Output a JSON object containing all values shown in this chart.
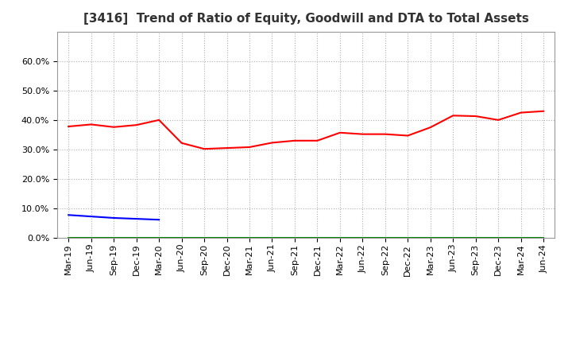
{
  "title": "[3416]  Trend of Ratio of Equity, Goodwill and DTA to Total Assets",
  "x_labels": [
    "Mar-19",
    "Jun-19",
    "Sep-19",
    "Dec-19",
    "Mar-20",
    "Jun-20",
    "Sep-20",
    "Dec-20",
    "Mar-21",
    "Jun-21",
    "Sep-21",
    "Dec-21",
    "Mar-22",
    "Jun-22",
    "Sep-22",
    "Dec-22",
    "Mar-23",
    "Jun-23",
    "Sep-23",
    "Dec-23",
    "Mar-24",
    "Jun-24"
  ],
  "equity": [
    0.378,
    0.385,
    0.376,
    0.383,
    0.4,
    0.322,
    0.302,
    0.305,
    0.308,
    0.323,
    0.33,
    0.33,
    0.357,
    0.352,
    0.352,
    0.347,
    0.375,
    0.415,
    0.413,
    0.4,
    0.425,
    0.43
  ],
  "goodwill": [
    0.078,
    0.073,
    0.068,
    0.065,
    0.062,
    null,
    null,
    null,
    null,
    null,
    null,
    null,
    null,
    null,
    null,
    null,
    null,
    null,
    null,
    null,
    null,
    null
  ],
  "dta": [
    0.0008,
    0.0008,
    0.0008,
    0.0008,
    0.0008,
    0.0008,
    0.0008,
    0.0008,
    0.0008,
    0.0008,
    0.0008,
    0.0008,
    0.0008,
    0.0008,
    0.0008,
    0.0008,
    0.0008,
    0.0008,
    0.0008,
    0.0008,
    0.0008,
    0.0008
  ],
  "equity_color": "#ff0000",
  "goodwill_color": "#0000ff",
  "dta_color": "#008000",
  "ylim": [
    0.0,
    0.7
  ],
  "yticks": [
    0.0,
    0.1,
    0.2,
    0.3,
    0.4,
    0.5,
    0.6
  ],
  "background_color": "#ffffff",
  "plot_bg_color": "#ffffff",
  "grid_color": "#b0b0b0",
  "title_fontsize": 11,
  "tick_fontsize": 8,
  "legend_fontsize": 9
}
